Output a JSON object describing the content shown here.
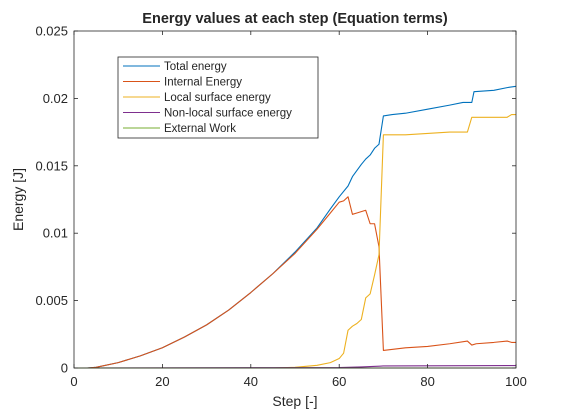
{
  "chart_data": {
    "type": "line",
    "title": "Energy values at each step (Equation terms)",
    "xlabel": "Step [-]",
    "ylabel": "Energy [J]",
    "xlim": [
      0,
      100
    ],
    "ylim": [
      0,
      0.025
    ],
    "xticks": [
      0,
      20,
      40,
      60,
      80,
      100
    ],
    "xtick_labels": [
      "0",
      "20",
      "40",
      "60",
      "80",
      "100"
    ],
    "yticks": [
      0,
      0.005,
      0.01,
      0.015,
      0.02,
      0.025
    ],
    "ytick_labels": [
      "0",
      "0.005",
      "0.01",
      "0.015",
      "0.02",
      "0.025"
    ],
    "grid": false,
    "legend_position": "top-left",
    "series": [
      {
        "name": "Total energy",
        "color": "#0072BD",
        "x": [
          0,
          3,
          5,
          10,
          15,
          20,
          25,
          30,
          35,
          40,
          45,
          50,
          55,
          58,
          60,
          62,
          63,
          65,
          66,
          67,
          68,
          69,
          70,
          72,
          75,
          80,
          85,
          88,
          90,
          90.5,
          95,
          98,
          100
        ],
        "y": [
          0,
          0,
          5e-05,
          0.0004,
          0.0009,
          0.0015,
          0.0023,
          0.0032,
          0.0043,
          0.0056,
          0.007,
          0.0086,
          0.0104,
          0.0118,
          0.0127,
          0.0135,
          0.0142,
          0.0151,
          0.0155,
          0.0158,
          0.0163,
          0.0166,
          0.0187,
          0.0188,
          0.0189,
          0.0192,
          0.0195,
          0.0197,
          0.0197,
          0.0205,
          0.0206,
          0.0208,
          0.0209
        ]
      },
      {
        "name": "Internal Energy",
        "color": "#D95319",
        "x": [
          0,
          3,
          5,
          10,
          15,
          20,
          25,
          30,
          35,
          40,
          45,
          50,
          55,
          58,
          60,
          61,
          62,
          63,
          64,
          65,
          66,
          67,
          68,
          69,
          70,
          75,
          80,
          85,
          89,
          90,
          91,
          95,
          98,
          99,
          100
        ],
        "y": [
          0,
          0,
          5e-05,
          0.0004,
          0.0009,
          0.0015,
          0.0023,
          0.0032,
          0.0043,
          0.0056,
          0.007,
          0.0085,
          0.0103,
          0.0115,
          0.0123,
          0.0124,
          0.0127,
          0.0114,
          0.0115,
          0.0116,
          0.0117,
          0.0107,
          0.0107,
          0.009,
          0.0013,
          0.0015,
          0.0016,
          0.0018,
          0.002,
          0.0017,
          0.0018,
          0.0019,
          0.002,
          0.0019,
          0.0019
        ]
      },
      {
        "name": "Local surface energy",
        "color": "#EDB120",
        "x": [
          0,
          45,
          50,
          55,
          58,
          60,
          61,
          62,
          63,
          64,
          65,
          66,
          67,
          68,
          69,
          70,
          75,
          80,
          85,
          89,
          90,
          95,
          98,
          99,
          100
        ],
        "y": [
          0,
          0,
          5e-05,
          0.0002,
          0.0004,
          0.0007,
          0.0011,
          0.0028,
          0.0031,
          0.0033,
          0.0036,
          0.0052,
          0.0055,
          0.0069,
          0.0084,
          0.0173,
          0.0173,
          0.0174,
          0.0175,
          0.0175,
          0.0186,
          0.0186,
          0.0186,
          0.0188,
          0.0188
        ]
      },
      {
        "name": "Non-local surface energy",
        "color": "#7E2F8E",
        "x": [
          0,
          60,
          65,
          70,
          100
        ],
        "y": [
          0,
          3e-05,
          8e-05,
          0.00015,
          0.00018
        ]
      },
      {
        "name": "External Work",
        "color": "#77AC30",
        "x": [
          0,
          100
        ],
        "y": [
          0,
          0
        ]
      }
    ]
  }
}
